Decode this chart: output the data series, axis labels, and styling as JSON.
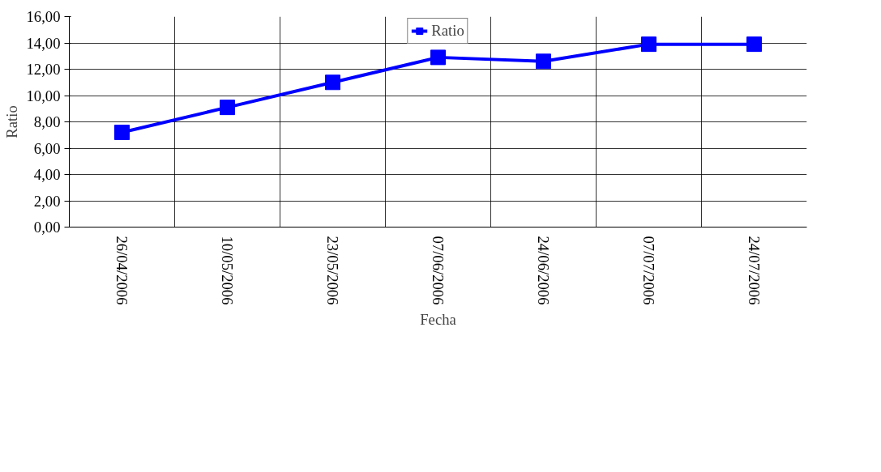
{
  "chart_data": {
    "type": "line",
    "xlabel": "Fecha",
    "ylabel": "Ratio",
    "categories": [
      "26/04/2006",
      "10/05/2006",
      "23/05/2006",
      "07/06/2006",
      "24/06/2006",
      "07/07/2006",
      "24/07/2006"
    ],
    "series": [
      {
        "name": "Ratio",
        "color": "#0000ff",
        "values": [
          7.2,
          9.1,
          11.0,
          12.9,
          12.6,
          13.9,
          13.9
        ]
      }
    ],
    "ylim": [
      0,
      16
    ],
    "yticks": [
      {
        "value": 0,
        "label": "0,00"
      },
      {
        "value": 2,
        "label": "2,00"
      },
      {
        "value": 4,
        "label": "4,00"
      },
      {
        "value": 6,
        "label": "6,00"
      },
      {
        "value": 8,
        "label": "8,00"
      },
      {
        "value": 10,
        "label": "10,00"
      },
      {
        "value": 12,
        "label": "12,00"
      },
      {
        "value": 14,
        "label": "14,00"
      },
      {
        "value": 16,
        "label": "16,00"
      }
    ],
    "grid": true,
    "legend": "top",
    "marker": "square",
    "line_style": "solid"
  }
}
